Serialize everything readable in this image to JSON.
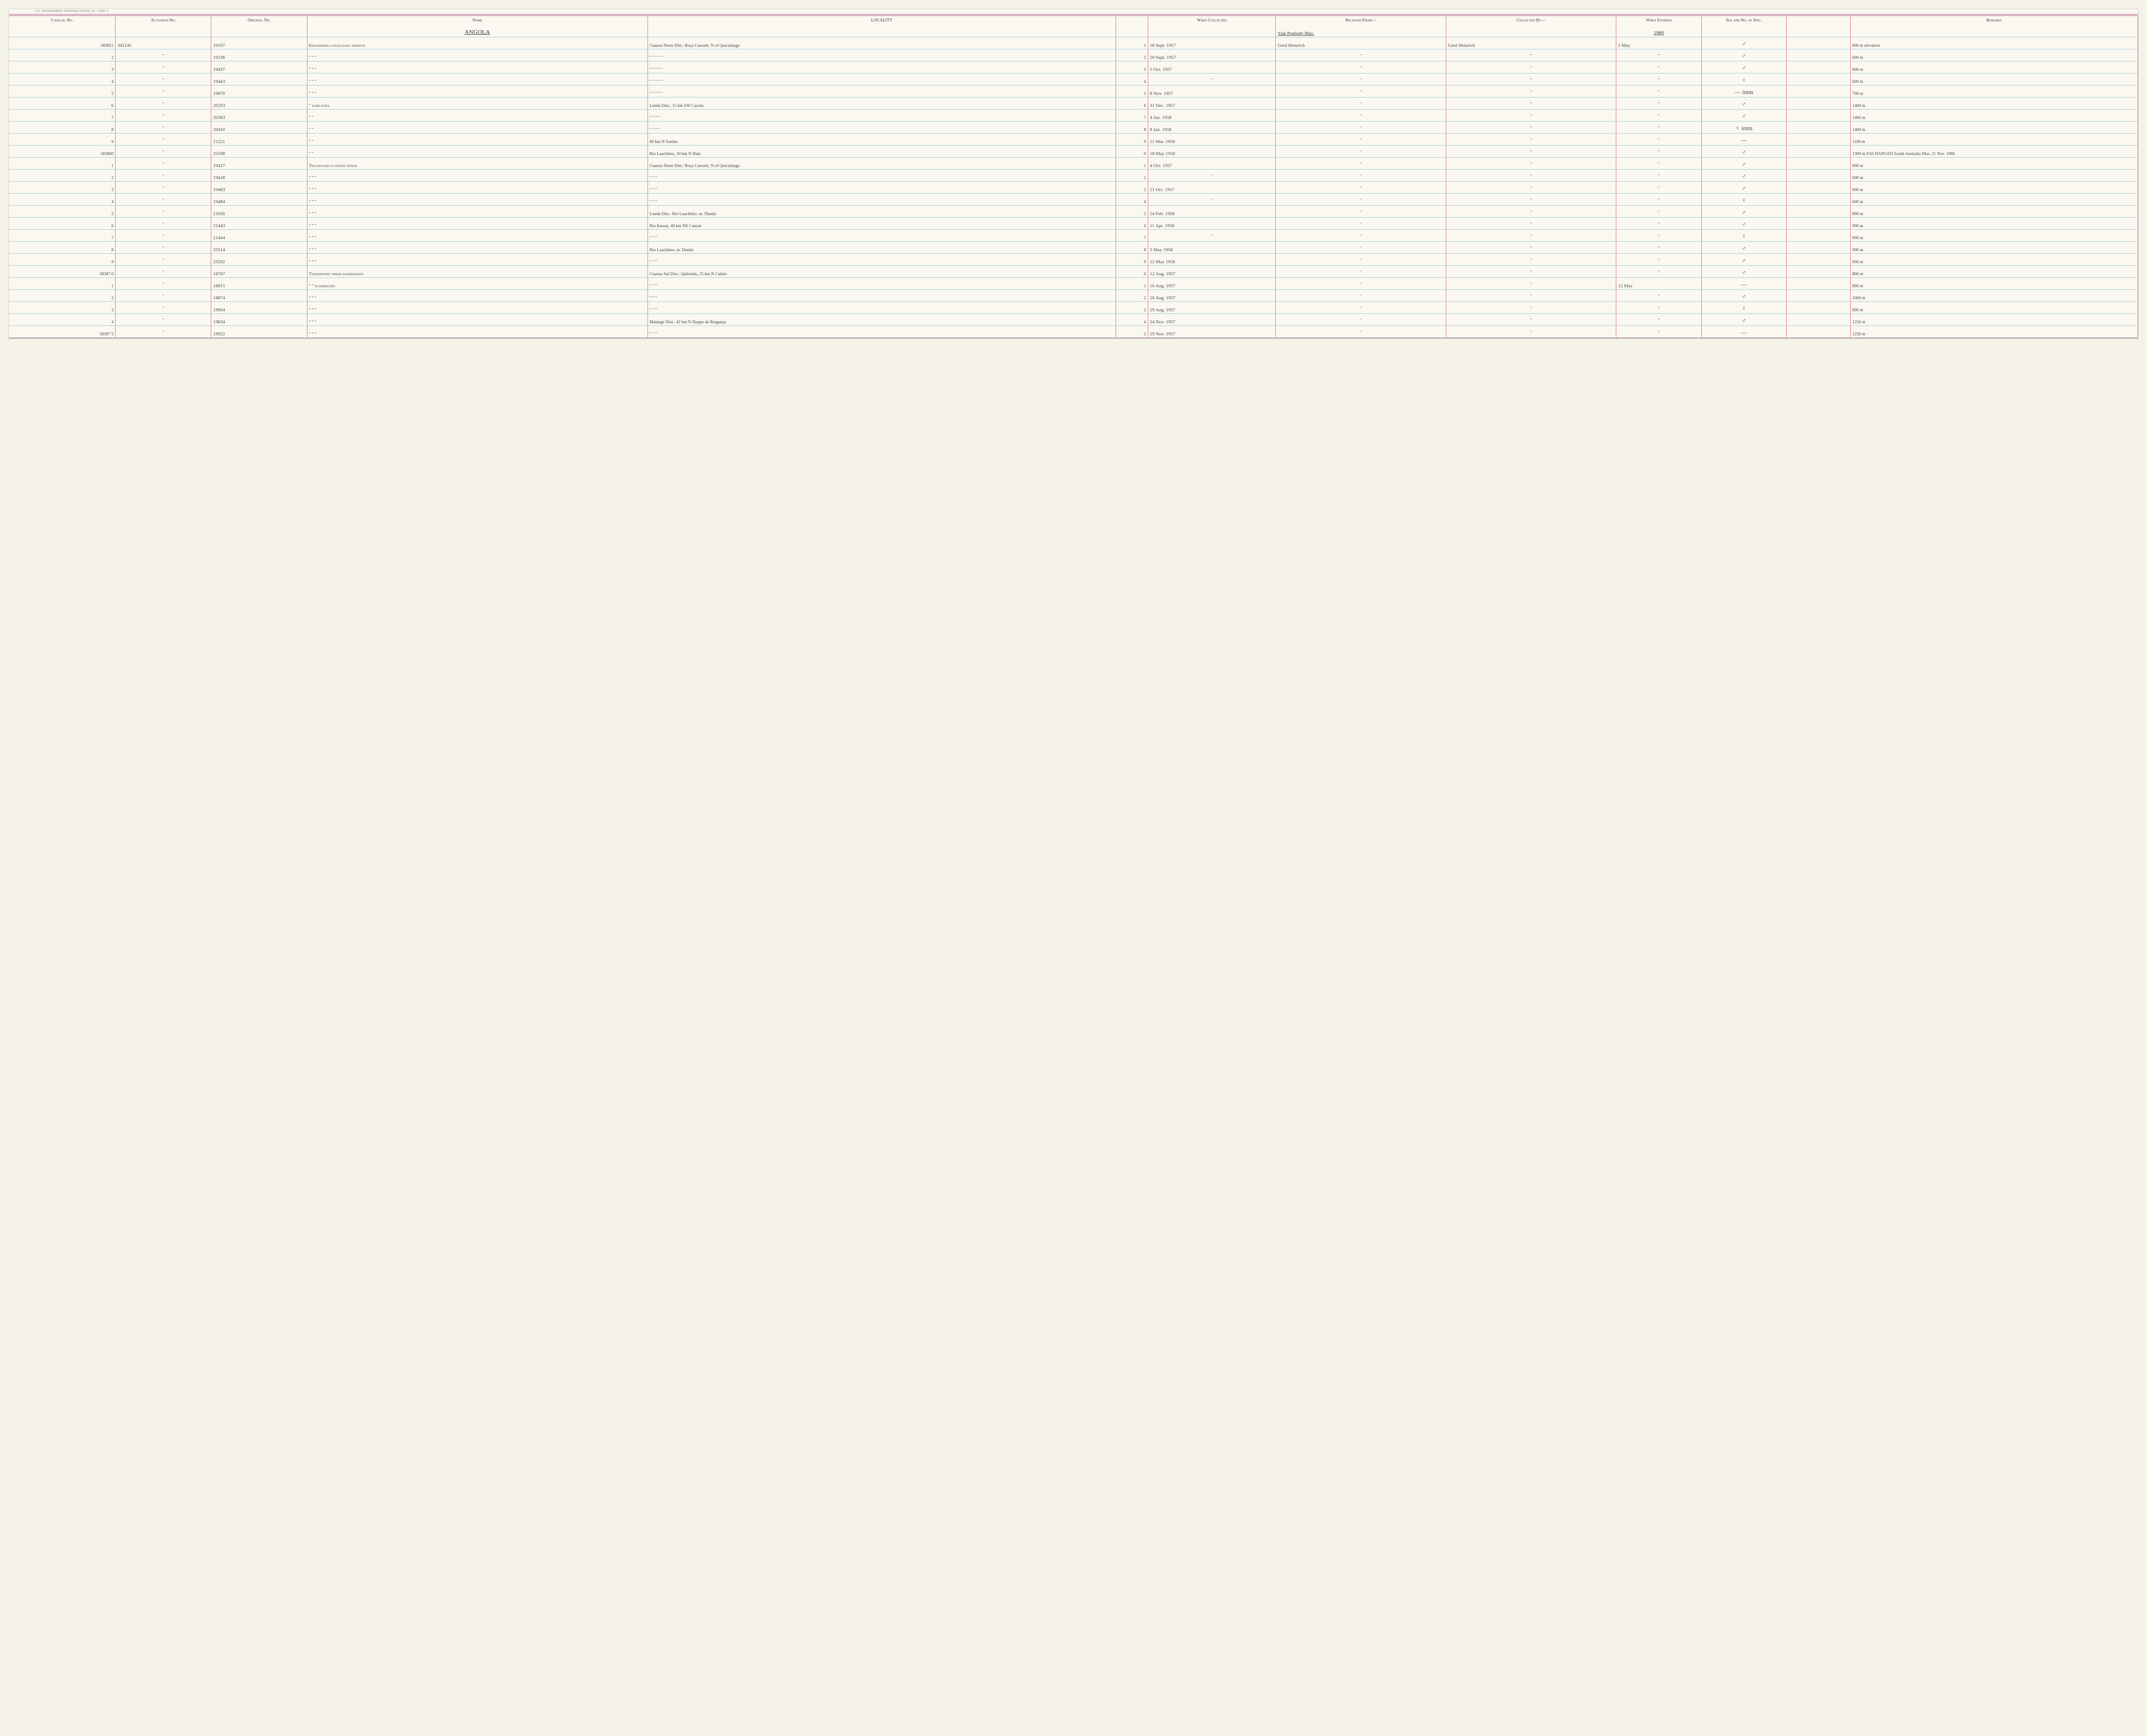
{
  "header": {
    "top_label": "U.S. GOVERNMENT PRINTING OFFICE    16—73591-3",
    "columns": [
      "Catalog No.",
      "Accession No.",
      "Original No.",
      "Name",
      "LOCALITY",
      "",
      "When Collected",
      "Received From—",
      "Collected By—",
      "When Entered",
      "Sex and No. of Spec.",
      "",
      "Remarks"
    ]
  },
  "section": {
    "title": "ANGOLA",
    "received_heading": "Yale Peabody Mus.",
    "year_heading": "1980"
  },
  "rows": [
    {
      "catalog": "583851",
      "accession": "341245",
      "original": "19197",
      "name": "Erannornis longicauda teresita",
      "locality": "Cuanza Norte Dist.: Roça Canzele, N of Quiculungo",
      "seq": "1",
      "when": "18 Sept. 1957",
      "received": "Gerd Heinrich",
      "collected": "Gerd Heinrich",
      "entered": "2 May",
      "sex": "♂",
      "remarks": "600 m elevation"
    },
    {
      "catalog": "2",
      "accession": "\"",
      "original": "19236",
      "name": "\"      \"      \"",
      "locality": "\"      \"      \"      \"      \"",
      "seq": "2",
      "when": "20 Sept. 1957",
      "received": "\"",
      "collected": "\"",
      "entered": "\"",
      "sex": "♂",
      "remarks": "600 m"
    },
    {
      "catalog": "3",
      "accession": "\"",
      "original": "19437",
      "name": "\"      \"      \"",
      "locality": "\"      \"      \"      \"      \"",
      "seq": "3",
      "when": "5 Oct. 1957",
      "received": "\"",
      "collected": "\"",
      "entered": "\"",
      "sex": "♂",
      "remarks": "600 m"
    },
    {
      "catalog": "4",
      "accession": "\"",
      "original": "19443",
      "name": "\"      \"      \"",
      "locality": "\"      \"      \"      \"      \"",
      "seq": "4",
      "when": "\"",
      "received": "\"",
      "collected": "\"",
      "entered": "\"",
      "sex": "♀",
      "remarks": "600 m"
    },
    {
      "catalog": "5",
      "accession": "\"",
      "original": "19670",
      "name": "\"      \"      \"",
      "locality": "\"      \"      \"      \"      \"",
      "seq": "5",
      "when": "8 Nov. 1957",
      "received": "\"",
      "collected": "\"",
      "entered": "\"",
      "sex": "— imm",
      "remarks": "700 m"
    },
    {
      "catalog": "6",
      "accession": "\"",
      "original": "20293",
      "name": "\"      albicauda",
      "locality": "Lunda Dist.: 15 km SW Cacolo",
      "seq": "6",
      "when": "31 Dec. 1957",
      "received": "\"",
      "collected": "\"",
      "entered": "\"",
      "sex": "♂",
      "remarks": "1400 m"
    },
    {
      "catalog": "7",
      "accession": "\"",
      "original": "20363",
      "name": "\"      \"",
      "locality": "\"      \"      \"      \"",
      "seq": "7",
      "when": "4 Jan. 1958",
      "received": "\"",
      "collected": "\"",
      "entered": "\"",
      "sex": "♂",
      "remarks": "1400 m"
    },
    {
      "catalog": "8",
      "accession": "\"",
      "original": "20410",
      "name": "\"      \"",
      "locality": "\"      \"      \"      \"",
      "seq": "8",
      "when": "8 Jan. 1958",
      "received": "\"",
      "collected": "\"",
      "entered": "\"",
      "sex": "♀ imm",
      "remarks": "1400 m"
    },
    {
      "catalog": "9",
      "accession": "\"",
      "original": "21221",
      "name": "\"      \"",
      "locality": "60 km N Sombo",
      "seq": "9",
      "when": "11 Mar. 1958",
      "received": "\"",
      "collected": "\"",
      "entered": "\"",
      "sex": "—",
      "remarks": "1100 m"
    },
    {
      "catalog": "583860",
      "accession": "\"",
      "original": "25598",
      "name": "\"      \"",
      "locality": "Rio Luachimo, 50 km N Dala",
      "seq": "0",
      "when": "18 May 1958",
      "received": "\"",
      "collected": "\"",
      "entered": "\"",
      "sex": "♂",
      "remarks": "1300 m  EXCHANGED South Australia Mus. 21 Nov. 1980"
    },
    {
      "catalog": "1",
      "accession": "\"",
      "original": "19427",
      "name": "Trochocercus nitens nitens",
      "locality": "Cuanza Norte Dist.: Roça Canzele, N of Quiculungo",
      "seq": "1",
      "when": "4 Oct. 1957",
      "received": "\"",
      "collected": "\"",
      "entered": "\"",
      "sex": "♂",
      "remarks": "600 m"
    },
    {
      "catalog": "2",
      "accession": "\"",
      "original": "19428",
      "name": "\"      \"      \"",
      "locality": "\"      \"      \"",
      "seq": "2",
      "when": "\"",
      "received": "\"",
      "collected": "\"",
      "entered": "\"",
      "sex": "♂",
      "remarks": "600 m"
    },
    {
      "catalog": "3",
      "accession": "\"",
      "original": "19483",
      "name": "\"      \"      \"",
      "locality": "\"      \"      \"",
      "seq": "3",
      "when": "21 Oct. 1957",
      "received": "\"",
      "collected": "\"",
      "entered": "\"",
      "sex": "♂",
      "remarks": "600 m"
    },
    {
      "catalog": "4",
      "accession": "\"",
      "original": "19484",
      "name": "\"      \"      \"",
      "locality": "\"      \"      \"",
      "seq": "4",
      "when": "\"",
      "received": "\"",
      "collected": "\"",
      "entered": "\"",
      "sex": "♀",
      "remarks": "600 m"
    },
    {
      "catalog": "5",
      "accession": "\"",
      "original": "21056",
      "name": "\"      \"      \"",
      "locality": "Lunda Dist.: Rio Luachimo, nr. Dundo",
      "seq": "5",
      "when": "24 Feb. 1958",
      "received": "\"",
      "collected": "\"",
      "entered": "\"",
      "sex": "♂",
      "remarks": "800 m"
    },
    {
      "catalog": "6",
      "accession": "\"",
      "original": "21443",
      "name": "\"      \"      \"",
      "locality": "Rio Kassai, 40 km NE Canzar",
      "seq": "6",
      "when": "11 Apr. 1958",
      "received": "\"",
      "collected": "\"",
      "entered": "\"",
      "sex": "♂",
      "remarks": "900 m"
    },
    {
      "catalog": "7",
      "accession": "\"",
      "original": "21444",
      "name": "\"      \"      \"",
      "locality": "\"      \"      \"",
      "seq": "7",
      "when": "\"",
      "received": "\"",
      "collected": "\"",
      "entered": "\"",
      "sex": "♀",
      "remarks": "900 m"
    },
    {
      "catalog": "8",
      "accession": "\"",
      "original": "25514",
      "name": "\"      \"      \"",
      "locality": "Rio Luachimo, nr. Dundo",
      "seq": "8",
      "when": "5 May 1958",
      "received": "\"",
      "collected": "\"",
      "entered": "\"",
      "sex": "♂",
      "remarks": "900 m"
    },
    {
      "catalog": "9",
      "accession": "\"",
      "original": "25592",
      "name": "\"      \"      \"",
      "locality": "\"      \"      \"",
      "seq": "9",
      "when": "12 May 1958",
      "received": "\"",
      "collected": "\"",
      "entered": "\"",
      "sex": "♂",
      "remarks": "900 m"
    },
    {
      "catalog": "58387 0",
      "accession": "\"",
      "original": "18767",
      "name": "Terpsiphone viridis bannermani",
      "locality": "Cuanza Sul Dist.: Quitondo, 25 km N Calulo",
      "seq": "0",
      "when": "12 Aug. 1957",
      "received": "\"",
      "collected": "\"",
      "entered": "\"",
      "sex": "♂",
      "remarks": "800 m"
    },
    {
      "catalog": "1",
      "accession": "\"",
      "original": "18815",
      "name": "\"      \"   plumbeiceps",
      "locality": "\"      \"      \"",
      "seq": "1",
      "when": "16 Aug. 1957",
      "received": "\"",
      "collected": "\"",
      "entered": "12 May",
      "sex": "—",
      "remarks": "800 m"
    },
    {
      "catalog": "2",
      "accession": "\"",
      "original": "18874",
      "name": "\"      \"      \"",
      "locality": "\"      \"      \"",
      "seq": "2",
      "when": "20 Aug. 1957",
      "received": "\"",
      "collected": "\"",
      "entered": "\"",
      "sex": "♂",
      "remarks": "1000 m"
    },
    {
      "catalog": "3",
      "accession": "\"",
      "original": "19004",
      "name": "\"      \"      \"",
      "locality": "\"      \"      \"",
      "seq": "3",
      "when": "29 Aug. 1957",
      "received": "\"",
      "collected": "\"",
      "entered": "\"",
      "sex": "♀",
      "remarks": "800 m"
    },
    {
      "catalog": "4",
      "accession": "\"",
      "original": "19834",
      "name": "\"      \"      \"",
      "locality": "Malange Dist.: 42 km N Duque de Bragança",
      "seq": "4",
      "when": "24 Nov. 1957",
      "received": "\"",
      "collected": "\"",
      "entered": "\"",
      "sex": "♂",
      "remarks": "1250 m"
    },
    {
      "catalog": "58387 5",
      "accession": "\"",
      "original": "19922",
      "name": "\"      \"      \"",
      "locality": "\"      \"      \"",
      "seq": "5",
      "when": "29 Nov. 1957",
      "received": "\"",
      "collected": "\"",
      "entered": "\"",
      "sex": "—",
      "remarks": "1250 m"
    }
  ],
  "colors": {
    "page_bg": "#faf8f0",
    "outer_bg": "#f5f2e8",
    "rule_blue": "#9cc5d8",
    "rule_red": "#d4696a",
    "rule_purple": "#b04080"
  }
}
